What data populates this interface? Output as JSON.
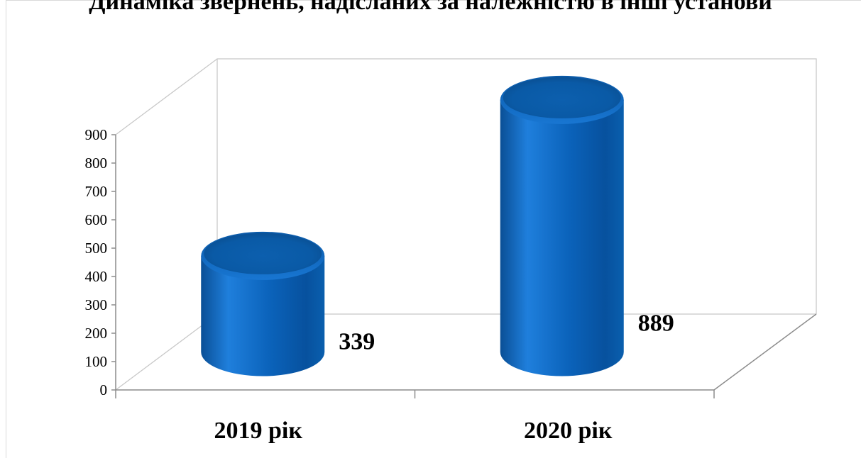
{
  "chart_data": {
    "type": "bar",
    "shape": "cylinder-3d",
    "title": "Динаміка звернень, надісланих за належністю в інші установи",
    "categories": [
      "2019 рік",
      "2020 рік"
    ],
    "values": [
      339,
      889
    ],
    "data_labels": [
      "339",
      "889"
    ],
    "ylim": [
      0,
      900
    ],
    "yticks": [
      0,
      100,
      200,
      300,
      400,
      500,
      600,
      700,
      800,
      900
    ],
    "ytick_labels": [
      "0",
      "100",
      "200",
      "300",
      "400",
      "500",
      "600",
      "700",
      "800",
      "900"
    ],
    "xlabel": "",
    "ylabel": "",
    "grid": false,
    "legend": "none",
    "bar_color": "#0a62b8"
  }
}
